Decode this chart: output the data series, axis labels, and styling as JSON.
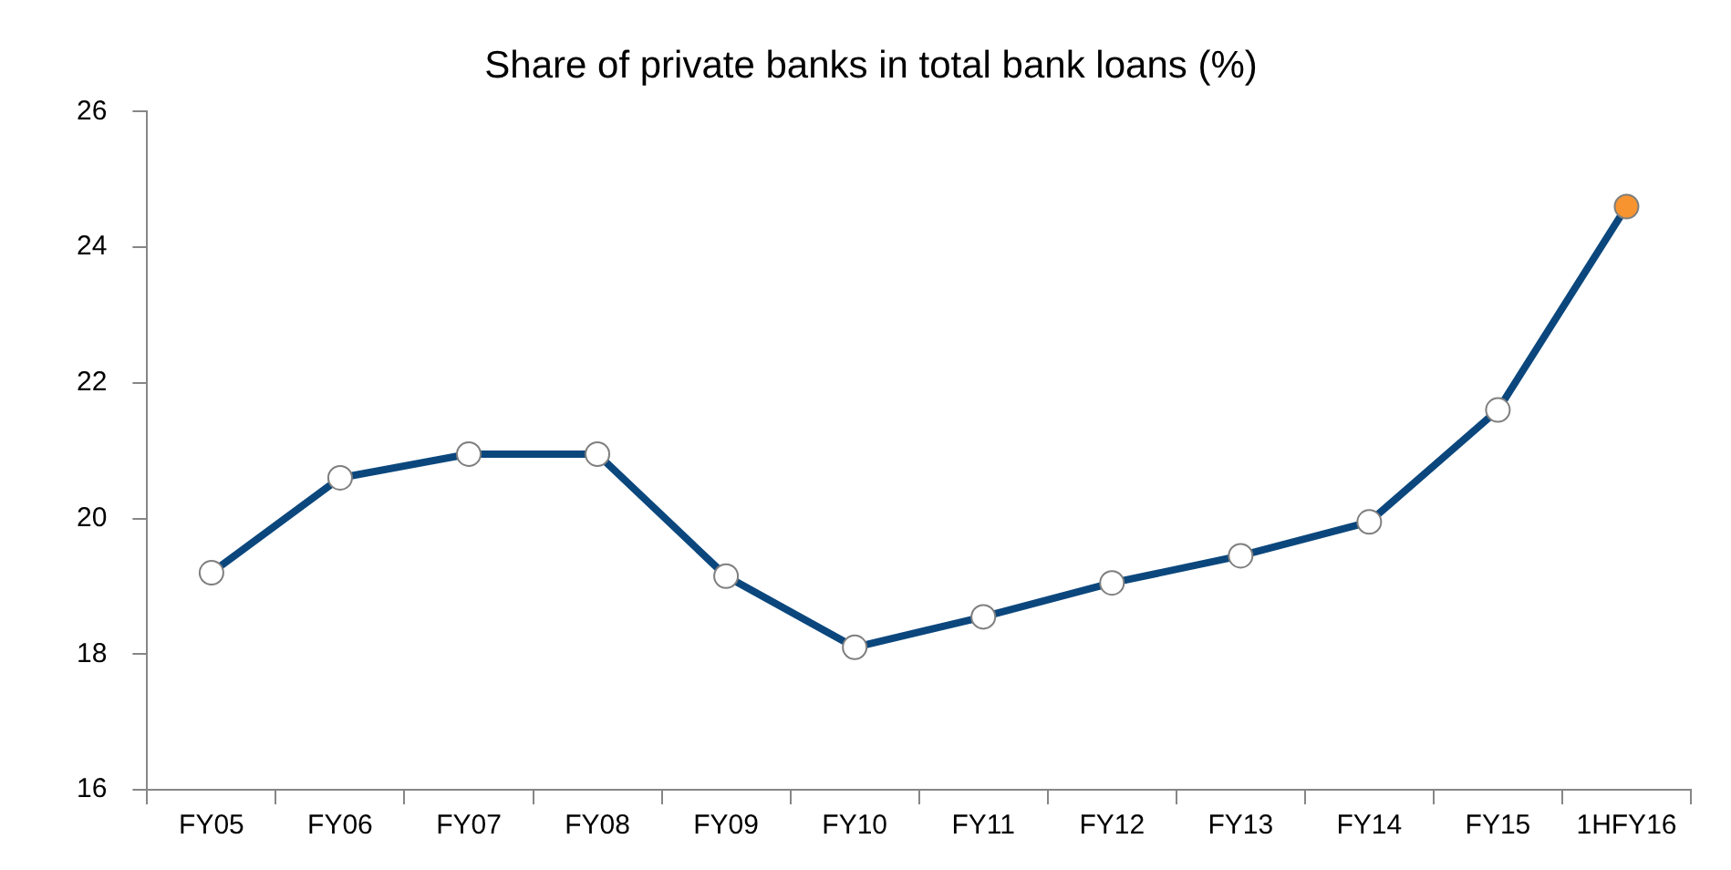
{
  "chart_data": {
    "type": "line",
    "title": "Share of private banks in total bank loans (%)",
    "categories": [
      "FY05",
      "FY06",
      "FY07",
      "FY08",
      "FY09",
      "FY10",
      "FY11",
      "FY12",
      "FY13",
      "FY14",
      "FY15",
      "1HFY16"
    ],
    "series": [
      {
        "color": "#0b477d",
        "values": [
          19.2,
          20.6,
          20.95,
          20.95,
          19.15,
          18.1,
          18.55,
          19.05,
          19.45,
          19.95,
          21.6,
          24.6
        ],
        "colors": [
          "#ffffff",
          "#ffffff",
          "#ffffff",
          "#ffffff",
          "#ffffff",
          "#ffffff",
          "#ffffff",
          "#ffffff",
          "#ffffff",
          "#ffffff",
          "#ffffff",
          "#f79430"
        ]
      }
    ],
    "ylim": [
      16,
      26
    ],
    "yticks": [
      16,
      18,
      20,
      22,
      24,
      26
    ],
    "grid": false,
    "legend": false,
    "marker": "circle",
    "line_style": "solid"
  }
}
